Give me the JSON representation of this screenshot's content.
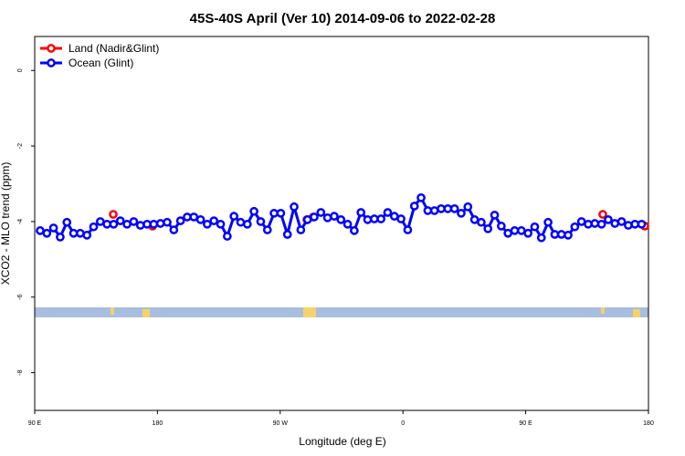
{
  "chart_data": {
    "type": "line",
    "title": "45S-40S April (Ver 10)   2014-09-06 to 2022-02-28",
    "xlabel": "Longitude (deg E)",
    "ylabel": "XCO2 - MLO trend (ppm)",
    "xlim": [
      90,
      540
    ],
    "xticks": [
      {
        "value": 90,
        "label": "90 E"
      },
      180,
      {
        "value": 270,
        "label": "90 W"
      },
      {
        "value": 360,
        "label": "0"
      },
      {
        "value": 450,
        "label": "90 E"
      },
      {
        "value": 540,
        "label": "180"
      }
    ],
    "ylim": [
      -9,
      0.9
    ],
    "yticks": [
      0,
      -2,
      -4,
      -6,
      -8
    ],
    "legend": "top-left",
    "series": [
      {
        "name": "Land (Nadir&Glint)",
        "color": "#ff0000",
        "x": [
          147.6,
          null,
          176.4,
          null,
          289.6,
          294.2,
          null,
          506.5,
          null,
          537.3
        ],
        "values": [
          -3.81,
          null,
          -4.12,
          null,
          -3.95,
          -3.88,
          null,
          -3.81,
          null,
          -4.12
        ]
      },
      {
        "name": "Ocean (Glint)",
        "color": "#0000ff",
        "x": [
          94,
          98.9,
          103.8,
          108.7,
          113.6,
          118.5,
          123.4,
          128.3,
          133.2,
          138.1,
          143,
          147.9,
          152.8,
          157.7,
          162.6,
          167.5,
          172.4,
          177.3,
          182.2,
          187.1,
          192,
          196.9,
          201.8,
          206.7,
          211.6,
          216.5,
          221.4,
          226.3,
          231.2,
          236.1,
          241,
          245.9,
          250.8,
          255.7,
          260.6,
          265.5,
          270.4,
          275.3,
          280.2,
          285.1,
          290,
          294.9,
          299.8,
          304.7,
          309.6,
          314.5,
          319.4,
          324.3,
          329.2,
          334.1,
          339,
          343.9,
          348.8,
          353.7,
          358.6,
          363.5,
          368.4,
          373.3,
          378.2,
          383.1,
          388,
          392.9,
          397.8,
          402.7,
          407.6,
          412.5,
          417.4,
          422.3,
          427.2,
          432.1,
          437,
          441.9,
          446.8,
          451.7,
          456.6,
          461.5,
          466.4,
          471.3,
          476.2,
          481.1,
          486,
          490.9,
          495.8,
          500.7,
          505.6,
          510.5,
          515.4,
          520.3,
          525.2,
          530.1,
          535
        ],
        "values": [
          -4.24,
          -4.31,
          -4.17,
          -4.41,
          -4.02,
          -4.31,
          -4.31,
          -4.36,
          -4.14,
          -4.0,
          -4.07,
          -4.07,
          -3.98,
          -4.07,
          -4.0,
          -4.1,
          -4.07,
          -4.07,
          -4.05,
          -4.02,
          -4.22,
          -3.98,
          -3.88,
          -3.88,
          -3.95,
          -4.07,
          -3.98,
          -4.07,
          -4.39,
          -3.86,
          -4.02,
          -4.07,
          -3.73,
          -4.0,
          -4.22,
          -3.78,
          -3.78,
          -4.34,
          -3.61,
          -4.22,
          -3.95,
          -3.88,
          -3.76,
          -3.9,
          -3.86,
          -3.95,
          -4.07,
          -4.24,
          -3.76,
          -3.95,
          -3.93,
          -3.93,
          -3.76,
          -3.86,
          -3.93,
          -4.22,
          -3.59,
          -3.37,
          -3.71,
          -3.71,
          -3.66,
          -3.66,
          -3.66,
          -3.78,
          -3.61,
          -3.95,
          -4.02,
          -4.19,
          -3.83,
          -4.12,
          -4.31,
          -4.24,
          -4.24,
          -4.31,
          -4.14,
          -4.43,
          -4.02,
          -4.34,
          -4.34,
          -4.36,
          -4.14,
          -4.0,
          -4.07,
          -4.05,
          -4.07,
          -3.95,
          -4.05,
          -4.0,
          -4.1,
          -4.07,
          -4.07
        ]
      }
    ]
  }
}
